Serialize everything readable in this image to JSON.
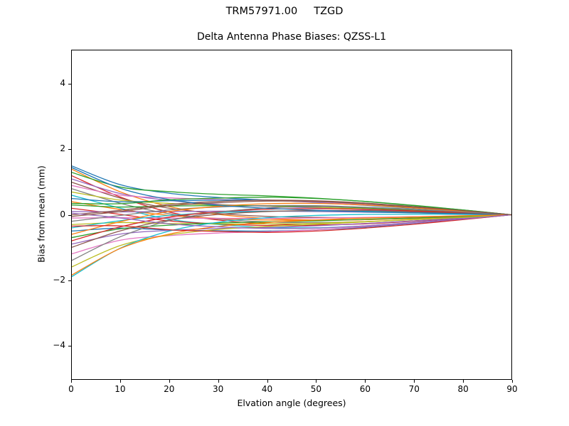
{
  "chart_data": {
    "type": "line",
    "suptitle": "TRM57971.00     TZGD",
    "title": "Delta Antenna Phase Biases: QZSS-L1",
    "xlabel": "Elvation angle (degrees)",
    "ylabel": "Bias from mean (mm)",
    "xlim": [
      0,
      90
    ],
    "ylim": [
      -5.05,
      5.05
    ],
    "xticks": [
      0,
      10,
      20,
      30,
      40,
      50,
      60,
      70,
      80,
      90
    ],
    "yticks": [
      -4,
      -2,
      0,
      2,
      4
    ],
    "grid": false,
    "legend": "none",
    "palette": [
      "#1f77b4",
      "#ff7f0e",
      "#2ca02c",
      "#d62728",
      "#9467bd",
      "#8c564b",
      "#e377c2",
      "#7f7f7f",
      "#bcbd22",
      "#17becf"
    ],
    "x": [
      0,
      10,
      20,
      30,
      40,
      50,
      60,
      70,
      80,
      90
    ],
    "series": [
      {
        "values": [
          1.5,
          0.92,
          0.66,
          0.53,
          0.45,
          0.38,
          0.29,
          0.2,
          0.11,
          0
        ]
      },
      {
        "values": [
          1.4,
          0.7,
          0.25,
          0.01,
          -0.11,
          -0.16,
          -0.15,
          -0.11,
          -0.06,
          0
        ]
      },
      {
        "values": [
          1.3,
          0.85,
          0.71,
          0.63,
          0.58,
          0.51,
          0.41,
          0.28,
          0.15,
          0
        ]
      },
      {
        "values": [
          1.2,
          0.54,
          0.08,
          -0.16,
          -0.28,
          -0.31,
          -0.28,
          -0.2,
          -0.11,
          0
        ]
      },
      {
        "values": [
          1.1,
          0.65,
          0.44,
          0.32,
          0.26,
          0.21,
          0.16,
          0.11,
          0.06,
          0
        ]
      },
      {
        "values": [
          1.0,
          0.51,
          0.2,
          0.04,
          -0.05,
          -0.08,
          -0.09,
          -0.06,
          -0.04,
          0
        ]
      },
      {
        "values": [
          0.9,
          0.6,
          0.52,
          0.47,
          0.44,
          0.39,
          0.31,
          0.21,
          0.11,
          0
        ]
      },
      {
        "values": [
          0.8,
          0.35,
          0.03,
          -0.13,
          -0.22,
          -0.24,
          -0.21,
          -0.15,
          -0.08,
          0
        ]
      },
      {
        "values": [
          0.7,
          0.45,
          0.35,
          0.3,
          0.27,
          0.23,
          0.18,
          0.13,
          0.07,
          0
        ]
      },
      {
        "values": [
          0.6,
          0.2,
          -0.14,
          -0.3,
          -0.39,
          -0.4,
          -0.34,
          -0.24,
          -0.13,
          0
        ]
      },
      {
        "values": [
          0.5,
          0.4,
          0.43,
          0.45,
          0.45,
          0.41,
          0.34,
          0.23,
          0.13,
          0
        ]
      },
      {
        "values": [
          0.4,
          0.16,
          -0.02,
          -0.11,
          -0.16,
          -0.17,
          -0.15,
          -0.1,
          -0.06,
          0
        ]
      },
      {
        "values": [
          0.3,
          0.24,
          0.27,
          0.28,
          0.28,
          0.26,
          0.21,
          0.15,
          0.08,
          0
        ]
      },
      {
        "values": [
          0.2,
          0.01,
          -0.19,
          -0.28,
          -0.33,
          -0.32,
          -0.27,
          -0.19,
          -0.1,
          0
        ]
      },
      {
        "values": [
          0.1,
          0.09,
          0.1,
          0.11,
          0.11,
          0.1,
          0.08,
          0.06,
          0.03,
          0
        ]
      },
      {
        "values": [
          0.0,
          0.14,
          0.32,
          0.41,
          0.45,
          0.43,
          0.36,
          0.25,
          0.14,
          0
        ]
      },
      {
        "values": [
          -0.1,
          -0.09,
          -0.1,
          -0.11,
          -0.11,
          -0.1,
          -0.08,
          -0.06,
          -0.03,
          0
        ]
      },
      {
        "values": [
          -0.2,
          -0.02,
          0.15,
          0.24,
          0.28,
          0.28,
          0.23,
          0.16,
          0.09,
          0
        ]
      },
      {
        "values": [
          -0.3,
          -0.24,
          -0.27,
          -0.28,
          -0.28,
          -0.26,
          -0.21,
          -0.15,
          -0.08,
          0
        ]
      },
      {
        "values": [
          -0.4,
          -0.18,
          -0.02,
          0.07,
          0.11,
          0.12,
          0.11,
          0.08,
          0.04,
          0
        ]
      },
      {
        "values": [
          -0.5,
          -0.41,
          -0.47,
          -0.49,
          -0.5,
          -0.46,
          -0.38,
          -0.26,
          -0.14,
          0
        ]
      },
      {
        "values": [
          -0.6,
          -0.21,
          0.1,
          0.26,
          0.34,
          0.35,
          0.3,
          0.21,
          0.11,
          0
        ]
      },
      {
        "values": [
          -0.7,
          -0.43,
          -0.32,
          -0.25,
          -0.22,
          -0.19,
          -0.14,
          -0.1,
          -0.05,
          0
        ]
      },
      {
        "values": [
          -0.8,
          -0.37,
          -0.07,
          0.09,
          0.17,
          0.19,
          0.17,
          0.12,
          0.07,
          0
        ]
      },
      {
        "values": [
          -0.9,
          -0.59,
          -0.48,
          -0.42,
          -0.39,
          -0.34,
          -0.27,
          -0.19,
          -0.1,
          0
        ]
      },
      {
        "values": [
          -1.0,
          -0.49,
          -0.16,
          0.01,
          0.1,
          0.13,
          0.13,
          0.09,
          0.05,
          0
        ]
      },
      {
        "values": [
          -1.2,
          -0.78,
          -0.64,
          -0.56,
          -0.52,
          -0.46,
          -0.36,
          -0.25,
          -0.13,
          0
        ]
      },
      {
        "values": [
          -1.4,
          -0.67,
          -0.18,
          0.08,
          0.21,
          0.25,
          0.23,
          0.17,
          0.09,
          0
        ]
      },
      {
        "values": [
          -1.6,
          -0.94,
          -0.62,
          -0.45,
          -0.36,
          -0.29,
          -0.22,
          -0.14,
          -0.08,
          0
        ]
      },
      {
        "values": [
          -1.9,
          -1.02,
          -0.5,
          -0.23,
          -0.09,
          -0.02,
          0.01,
          0.02,
          0.01,
          0
        ]
      },
      {
        "values": [
          1.45,
          0.81,
          0.47,
          0.29,
          0.2,
          0.14,
          0.09,
          0.06,
          0.03,
          0
        ]
      },
      {
        "values": [
          -1.85,
          -1.03,
          -0.59,
          -0.36,
          -0.24,
          -0.16,
          -0.1,
          -0.07,
          -0.03,
          0
        ]
      },
      {
        "values": [
          0.35,
          0.34,
          0.46,
          0.51,
          0.54,
          0.5,
          0.41,
          0.29,
          0.15,
          0
        ]
      },
      {
        "values": [
          -0.35,
          -0.34,
          -0.46,
          -0.51,
          -0.54,
          -0.5,
          -0.41,
          -0.29,
          -0.15,
          0
        ]
      },
      {
        "values": [
          0.05,
          -0.1,
          -0.28,
          -0.37,
          -0.42,
          -0.41,
          -0.34,
          -0.24,
          -0.13,
          0
        ]
      },
      {
        "values": [
          -0.05,
          0.1,
          0.28,
          0.37,
          0.42,
          0.41,
          0.34,
          0.24,
          0.13,
          0
        ]
      }
    ]
  }
}
